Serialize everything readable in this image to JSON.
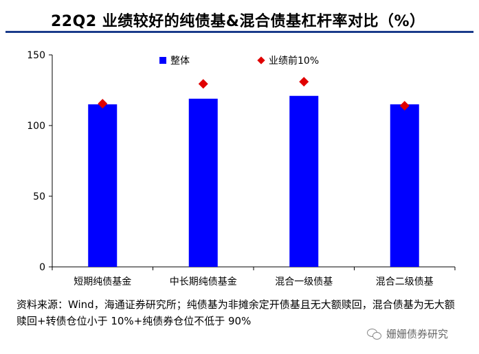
{
  "title": "22Q2 业绩较好的纯债基&混合债基杠杆率对比（%）",
  "chart_data": {
    "type": "bar",
    "categories": [
      "短期纯债基金",
      "中长期纯债基金",
      "混合一级债基",
      "混合二级债基"
    ],
    "series": [
      {
        "name": "整体",
        "kind": "bar",
        "color": "#0000ff",
        "values": [
          115,
          119,
          121,
          115
        ]
      },
      {
        "name": "业绩前10%",
        "kind": "marker",
        "color": "#e00000",
        "values": [
          115.5,
          129.5,
          131,
          114
        ]
      }
    ],
    "ylim": [
      0,
      150
    ],
    "yticks": [
      0,
      50,
      100,
      150
    ],
    "xlabel": "",
    "ylabel": "",
    "grid": false,
    "legend_position": "top-center"
  },
  "source_note": "资料来源：Wind，海通证券研究所；纯债基为非摊余定开债基且无大额赎回，混合债基为无大额赎回+转债仓位小于 10%+纯债券仓位不低于 90%",
  "watermark": "姗姗债券研究"
}
